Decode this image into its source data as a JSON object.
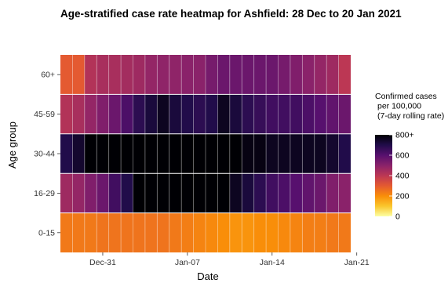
{
  "chart_data": {
    "type": "heatmap",
    "title": "Age-stratified case rate heatmap for Ashfield: 28 Dec to 20 Jan 2021",
    "xlabel": "Date",
    "ylabel": "Age group",
    "x_tick_labels": [
      "Dec-31",
      "Jan-07",
      "Jan-14",
      "Jan-21"
    ],
    "y_categories": [
      "60+",
      "45-59",
      "30-44",
      "16-29",
      "0-15"
    ],
    "x_dates": [
      "2020-12-28",
      "2020-12-29",
      "2020-12-30",
      "2020-12-31",
      "2021-01-01",
      "2021-01-02",
      "2021-01-03",
      "2021-01-04",
      "2021-01-05",
      "2021-01-06",
      "2021-01-07",
      "2021-01-08",
      "2021-01-09",
      "2021-01-10",
      "2021-01-11",
      "2021-01-12",
      "2021-01-13",
      "2021-01-14",
      "2021-01-15",
      "2021-01-16",
      "2021-01-17",
      "2021-01-18",
      "2021-01-19",
      "2021-01-20"
    ],
    "series": [
      {
        "name": "60+",
        "values": [
          300,
          300,
          420,
          440,
          440,
          450,
          460,
          480,
          490,
          490,
          500,
          500,
          540,
          560,
          560,
          560,
          560,
          560,
          540,
          520,
          500,
          480,
          460,
          400
        ]
      },
      {
        "name": "45-59",
        "values": [
          420,
          440,
          480,
          520,
          560,
          620,
          680,
          720,
          760,
          720,
          700,
          680,
          700,
          760,
          720,
          680,
          660,
          640,
          640,
          640,
          620,
          600,
          580,
          560
        ]
      },
      {
        "name": "30-44",
        "values": [
          700,
          740,
          800,
          800,
          800,
          800,
          800,
          800,
          800,
          800,
          800,
          800,
          800,
          800,
          800,
          780,
          780,
          760,
          760,
          760,
          760,
          760,
          740,
          700
        ]
      },
      {
        "name": "16-29",
        "values": [
          460,
          480,
          520,
          560,
          640,
          700,
          800,
          800,
          800,
          800,
          800,
          800,
          800,
          800,
          760,
          720,
          680,
          640,
          620,
          600,
          580,
          560,
          520,
          500
        ]
      },
      {
        "name": "0-15",
        "values": [
          240,
          240,
          240,
          250,
          250,
          250,
          250,
          250,
          250,
          240,
          230,
          220,
          210,
          200,
          190,
          190,
          200,
          200,
          210,
          220,
          230,
          230,
          240,
          240
        ]
      }
    ],
    "value_range": [
      0,
      800
    ],
    "legend": {
      "title_lines": [
        "Confirmed cases",
        "per 100,000",
        "(7-day rolling rate)"
      ],
      "ticks": [
        {
          "value": 800,
          "label": "800+"
        },
        {
          "value": 600,
          "label": "600"
        },
        {
          "value": 400,
          "label": "400"
        },
        {
          "value": 200,
          "label": "200"
        },
        {
          "value": 0,
          "label": "0"
        }
      ],
      "placement": "right"
    },
    "colormap": [
      "#fcffa4",
      "#fac62d",
      "#f98e09",
      "#e45a31",
      "#bc3754",
      "#8a226a",
      "#57106e",
      "#210c4a",
      "#000004"
    ]
  }
}
